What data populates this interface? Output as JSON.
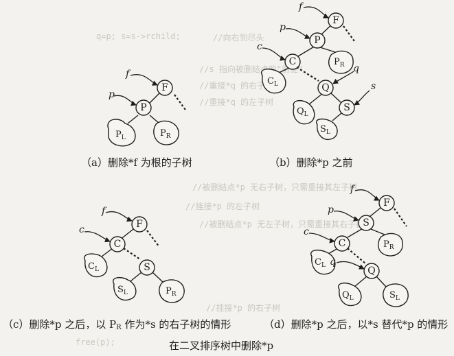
{
  "captions": {
    "a": "（a）删除*f 为根的子树",
    "b": "（b）删除*p 之前",
    "c": "（c）删除*p 之后，以 PR 作为*s 的右子树的情形",
    "d": "（d）删除*p 之后，以*s 替代*p 的情形",
    "main": "在二叉排序树中删除*p"
  },
  "panel_a": {
    "pointers": [
      "f",
      "p"
    ],
    "nodes": [
      "F",
      "P"
    ],
    "subtrees": [
      "P",
      "L",
      "P",
      "R"
    ]
  },
  "panel_b": {
    "pointers": [
      "f",
      "p",
      "c",
      "q",
      "s"
    ],
    "nodes": [
      "F",
      "P",
      "C",
      "Q",
      "S"
    ],
    "subtrees": [
      "P",
      "R",
      "C",
      "L",
      "Q",
      "L",
      "S",
      "L"
    ]
  },
  "panel_c": {
    "pointers": [
      "f",
      "c"
    ],
    "nodes": [
      "F",
      "C",
      "S"
    ],
    "subtrees": [
      "C",
      "L",
      "S",
      "L",
      "P",
      "R"
    ]
  },
  "panel_d": {
    "pointers": [
      "f",
      "p",
      "c",
      "q"
    ],
    "nodes": [
      "F",
      "S",
      "C",
      "Q"
    ],
    "subtrees": [
      "P",
      "R",
      "C",
      "L",
      "Q",
      "L",
      "S",
      "L"
    ]
  },
  "background_text": [
    "q=p; s=s->rchild;",
    "//向右到尽头",
    "//s 指向被删结点的\"前驱\"",
    "//重接*q 的右子树",
    "//重接*q 的左子树",
    "//被删结点*p 无右子树，只需重接其左子树",
    "//挂接*p 的左子树",
    "//被删结点*p 无左子树，只需重接其右子树",
    "//挂接*p 的右子树",
    "free(p);"
  ],
  "colors": {
    "ink": "#1e1e1e",
    "paper": "#f3f2ee",
    "ghost": "#c9c7c0"
  }
}
